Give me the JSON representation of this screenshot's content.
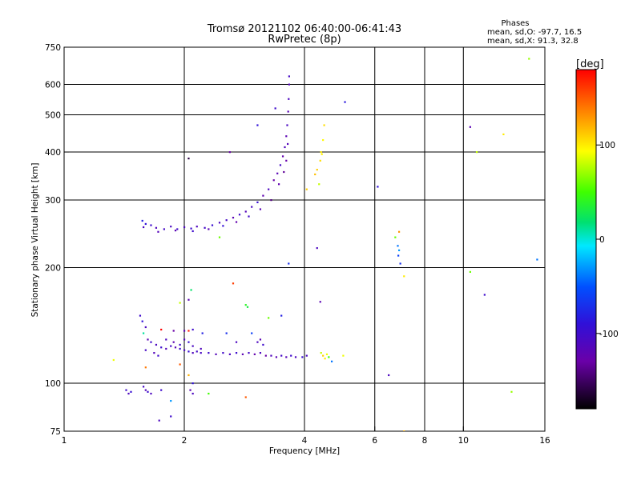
{
  "chart_data": {
    "type": "scatter",
    "title": "Tromsø 20121102 06:40:00-06:41:43",
    "subtitle": "RwPretec (8p)",
    "xlabel": "Frequency [MHz]",
    "ylabel": "Stationary phase Virtual Height [km]",
    "xscale": "log",
    "yscale": "log",
    "xlim": [
      1,
      16
    ],
    "ylim": [
      75,
      750
    ],
    "xticks": [
      1,
      2,
      4,
      6,
      8,
      10,
      16
    ],
    "xtick_labels": [
      "1",
      "2",
      "4",
      "6",
      "8",
      "10",
      "16"
    ],
    "yticks": [
      75,
      100,
      200,
      300,
      400,
      500,
      600,
      750
    ],
    "ytick_labels": [
      "75",
      "100",
      "200",
      "300",
      "400",
      "500",
      "600",
      "750"
    ],
    "x_gridlines": [
      2,
      4,
      6,
      8,
      10
    ],
    "y_gridlines": [
      100,
      200,
      300,
      400,
      500,
      600
    ],
    "stats_title": "Phases",
    "stats_lines": [
      "mean, sd,O: -97.7, 16.5",
      "mean, sd,X:  91.3, 32.8"
    ],
    "colorbar": {
      "label": "[deg]",
      "range": [
        -180,
        180
      ],
      "ticks": [
        100,
        0,
        -100
      ],
      "tick_labels": [
        "100",
        "0",
        "-100"
      ]
    },
    "series": [
      {
        "color_note": "points colored by phase (deg)",
        "points": [
          [
            1.58,
            255,
            -110
          ],
          [
            1.65,
            258,
            -100
          ],
          [
            1.7,
            254,
            -112
          ],
          [
            1.78,
            252,
            -105
          ],
          [
            1.85,
            256,
            -108
          ],
          [
            1.92,
            252,
            -102
          ],
          [
            2.0,
            255,
            -110
          ],
          [
            2.08,
            253,
            -98
          ],
          [
            2.15,
            256,
            -112
          ],
          [
            2.25,
            254,
            -104
          ],
          [
            2.35,
            258,
            -96
          ],
          [
            2.45,
            262,
            -110
          ],
          [
            2.55,
            266,
            -105
          ],
          [
            2.65,
            270,
            -120
          ],
          [
            2.75,
            275,
            -100
          ],
          [
            2.85,
            280,
            -115
          ],
          [
            2.95,
            288,
            -108
          ],
          [
            3.05,
            296,
            -95
          ],
          [
            3.15,
            308,
            -122
          ],
          [
            3.25,
            320,
            -110
          ],
          [
            3.35,
            338,
            -130
          ],
          [
            3.42,
            352,
            -118
          ],
          [
            3.48,
            370,
            -105
          ],
          [
            3.53,
            390,
            -125
          ],
          [
            3.57,
            412,
            -112
          ],
          [
            3.6,
            440,
            -120
          ],
          [
            3.62,
            470,
            -108
          ],
          [
            3.64,
            510,
            -118
          ],
          [
            3.65,
            550,
            -110
          ],
          [
            3.66,
            600,
            -115
          ],
          [
            3.66,
            630,
            -105
          ],
          [
            1.6,
            260,
            -90
          ],
          [
            1.72,
            248,
            -115
          ],
          [
            1.9,
            250,
            -120
          ],
          [
            2.1,
            249,
            -100
          ],
          [
            2.3,
            252,
            -118
          ],
          [
            2.5,
            257,
            -92
          ],
          [
            2.7,
            263,
            -125
          ],
          [
            2.9,
            272,
            -102
          ],
          [
            3.1,
            284,
            -118
          ],
          [
            3.3,
            300,
            -140
          ],
          [
            3.45,
            330,
            -122
          ],
          [
            3.55,
            355,
            -135
          ],
          [
            3.6,
            380,
            -128
          ],
          [
            3.63,
            420,
            -115
          ],
          [
            1.57,
            265,
            -80
          ],
          [
            2.45,
            240,
            60
          ],
          [
            2.6,
            400,
            -130
          ],
          [
            2.05,
            385,
            -160
          ],
          [
            3.05,
            470,
            -90
          ],
          [
            3.38,
            520,
            -100
          ],
          [
            3.65,
            205,
            -70
          ],
          [
            5.05,
            540,
            -85
          ],
          [
            4.05,
            320,
            110
          ],
          [
            4.25,
            350,
            115
          ],
          [
            4.3,
            360,
            110
          ],
          [
            4.38,
            380,
            105
          ],
          [
            4.4,
            400,
            100
          ],
          [
            4.45,
            430,
            95
          ],
          [
            4.48,
            470,
            105
          ],
          [
            4.35,
            330,
            80
          ],
          [
            4.42,
            395,
            98
          ],
          [
            4.3,
            225,
            -110
          ],
          [
            6.1,
            325,
            -90
          ],
          [
            6.75,
            240,
            60
          ],
          [
            6.9,
            248,
            130
          ],
          [
            6.85,
            228,
            -40
          ],
          [
            6.87,
            215,
            -60
          ],
          [
            6.9,
            222,
            -30
          ],
          [
            6.95,
            205,
            -70
          ],
          [
            7.1,
            190,
            100
          ],
          [
            10.4,
            195,
            60
          ],
          [
            10.4,
            465,
            -120
          ],
          [
            10.8,
            400,
            80
          ],
          [
            12.6,
            445,
            100
          ],
          [
            13.2,
            95,
            70
          ],
          [
            14.6,
            700,
            70
          ],
          [
            15.3,
            210,
            -40
          ],
          [
            11.3,
            170,
            -100
          ],
          [
            6.5,
            105,
            -110
          ],
          [
            7.1,
            75,
            120
          ],
          [
            1.43,
            96,
            -100
          ],
          [
            1.45,
            94,
            -110
          ],
          [
            1.47,
            95,
            -95
          ],
          [
            1.58,
            98,
            -105
          ],
          [
            1.6,
            96,
            -115
          ],
          [
            1.62,
            95,
            -98
          ],
          [
            1.65,
            94,
            -110
          ],
          [
            1.75,
            96,
            -100
          ],
          [
            1.73,
            80,
            -110
          ],
          [
            1.85,
            82,
            -100
          ],
          [
            2.07,
            96,
            -120
          ],
          [
            2.1,
            100,
            -90
          ],
          [
            2.1,
            94,
            -110
          ],
          [
            2.3,
            94,
            50
          ],
          [
            2.85,
            92,
            150
          ],
          [
            1.85,
            90,
            -30
          ],
          [
            1.55,
            150,
            -100
          ],
          [
            1.57,
            145,
            -90
          ],
          [
            1.6,
            140,
            -110
          ],
          [
            1.58,
            135,
            10
          ],
          [
            1.62,
            130,
            -120
          ],
          [
            1.65,
            128,
            -100
          ],
          [
            1.7,
            126,
            -110
          ],
          [
            1.75,
            124,
            -98
          ],
          [
            1.8,
            123,
            -115
          ],
          [
            1.85,
            125,
            -105
          ],
          [
            1.9,
            124,
            -118
          ],
          [
            1.95,
            123,
            -100
          ],
          [
            2.0,
            122,
            -110
          ],
          [
            2.05,
            121,
            -95
          ],
          [
            2.1,
            120,
            -112
          ],
          [
            2.15,
            121,
            -104
          ],
          [
            2.2,
            120,
            -108
          ],
          [
            2.3,
            120,
            -100
          ],
          [
            2.4,
            119,
            -115
          ],
          [
            2.5,
            120,
            -102
          ],
          [
            2.6,
            119,
            -110
          ],
          [
            2.7,
            120,
            -98
          ],
          [
            2.8,
            119,
            -120
          ],
          [
            2.9,
            120,
            -105
          ],
          [
            3.0,
            119,
            -125
          ],
          [
            3.1,
            120,
            -110
          ],
          [
            3.2,
            118,
            -130
          ],
          [
            3.3,
            118,
            -112
          ],
          [
            3.4,
            117,
            -120
          ],
          [
            3.5,
            118,
            -105
          ],
          [
            3.6,
            117,
            -118
          ],
          [
            3.7,
            118,
            -100
          ],
          [
            3.8,
            117,
            -112
          ],
          [
            3.95,
            117,
            -95
          ],
          [
            4.05,
            118,
            -108
          ],
          [
            1.6,
            122,
            -105
          ],
          [
            1.68,
            120,
            -115
          ],
          [
            1.72,
            118,
            -100
          ],
          [
            1.8,
            130,
            -110
          ],
          [
            1.88,
            128,
            -120
          ],
          [
            1.95,
            126,
            -100
          ],
          [
            2.0,
            130,
            -115
          ],
          [
            2.05,
            128,
            -95
          ],
          [
            2.1,
            125,
            -108
          ],
          [
            2.2,
            123,
            -112
          ],
          [
            3.05,
            128,
            -110
          ],
          [
            3.1,
            130,
            -120
          ],
          [
            3.15,
            126,
            -100
          ],
          [
            1.95,
            112,
            150
          ],
          [
            1.6,
            110,
            140
          ],
          [
            1.33,
            115,
            90
          ],
          [
            1.75,
            138,
            180
          ],
          [
            1.88,
            137,
            -130
          ],
          [
            2.0,
            137,
            -120
          ],
          [
            2.05,
            137,
            170
          ],
          [
            2.1,
            138,
            -100
          ],
          [
            2.22,
            135,
            -80
          ],
          [
            2.55,
            135,
            -70
          ],
          [
            2.7,
            128,
            -110
          ],
          [
            2.95,
            135,
            -60
          ],
          [
            3.25,
            148,
            60
          ],
          [
            2.85,
            160,
            40
          ],
          [
            2.88,
            158,
            30
          ],
          [
            1.95,
            162,
            80
          ],
          [
            2.05,
            165,
            -120
          ],
          [
            2.65,
            182,
            160
          ],
          [
            2.08,
            175,
            20
          ],
          [
            4.4,
            120,
            80
          ],
          [
            4.45,
            118,
            110
          ],
          [
            4.5,
            116,
            100
          ],
          [
            4.55,
            119,
            90
          ],
          [
            4.6,
            117,
            50
          ],
          [
            4.68,
            114,
            -40
          ],
          [
            4.38,
            163,
            -120
          ],
          [
            5.0,
            118,
            90
          ],
          [
            3.5,
            150,
            -80
          ],
          [
            2.05,
            105,
            120
          ]
        ]
      }
    ]
  }
}
